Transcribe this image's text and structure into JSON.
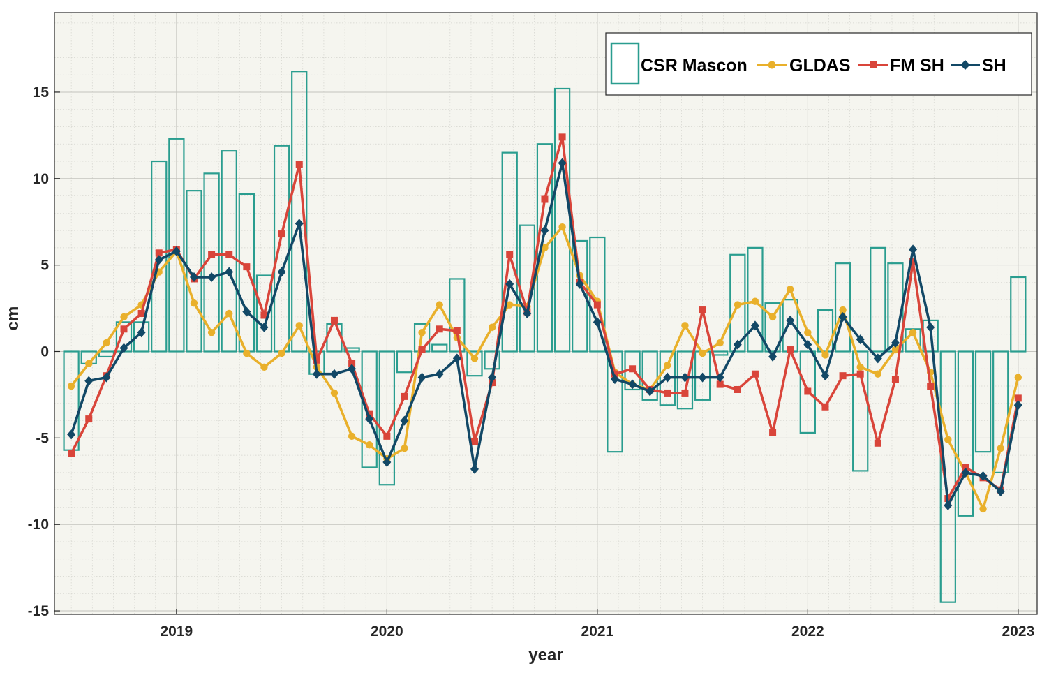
{
  "chart_data": {
    "type": "bar+line",
    "title": "",
    "xlabel": "year",
    "ylabel": "cm",
    "xlim": [
      2018.42,
      2023.09
    ],
    "ylim": [
      -15.2,
      19.6
    ],
    "x_ticks": [
      2019,
      2020,
      2021,
      2022,
      2023
    ],
    "x_tick_labels": [
      "2019",
      "2020",
      "2021",
      "2022",
      "2023"
    ],
    "y_ticks": [
      -15,
      -10,
      -5,
      0,
      5,
      10,
      15
    ],
    "y_tick_labels": [
      "-15",
      "-10",
      "-5",
      "0",
      "5",
      "10",
      "15"
    ],
    "grid": "on (major and minor)",
    "legend_position": "top-right",
    "x_start": 2018.5,
    "x_step": 0.08333,
    "colors": {
      "mascon": "#2a9d8f",
      "gldas": "#e9b02b",
      "fmsh": "#d9453a",
      "sh": "#124866",
      "plot_bg": "#f5f5ef",
      "grid": "#d3d3cd"
    },
    "series": [
      {
        "name": "CSR Mascon",
        "style": "bar",
        "values": [
          -5.7,
          -0.7,
          -0.3,
          1.7,
          1.7,
          11.0,
          12.3,
          9.3,
          10.3,
          11.6,
          9.1,
          4.4,
          11.9,
          16.2,
          -1.3,
          1.6,
          0.2,
          -6.7,
          -7.7,
          -1.2,
          1.6,
          0.4,
          4.2,
          -1.4,
          -1.0,
          11.5,
          7.3,
          12.0,
          15.2,
          6.4,
          6.6,
          -5.8,
          -2.2,
          -2.8,
          -3.1,
          -3.3,
          -2.8,
          -0.2,
          5.6,
          6.0,
          2.8,
          3.0,
          -4.7,
          2.4,
          5.1,
          -6.9,
          6.0,
          5.1,
          1.3,
          1.8,
          -14.5,
          -9.5,
          -5.8,
          -7.0,
          4.3
        ]
      },
      {
        "name": "GLDAS",
        "style": "line-circle",
        "values": [
          -2.0,
          -0.7,
          0.5,
          2.0,
          2.7,
          4.6,
          5.8,
          2.8,
          1.1,
          2.2,
          -0.1,
          -0.9,
          -0.1,
          1.5,
          -0.9,
          -2.4,
          -4.9,
          -5.4,
          -6.2,
          -5.6,
          1.1,
          2.7,
          0.8,
          -0.4,
          1.4,
          2.7,
          2.6,
          6.0,
          7.2,
          4.4,
          2.9,
          -1.2,
          -1.9,
          -2.2,
          -0.8,
          1.5,
          -0.1,
          0.5,
          2.7,
          2.9,
          2.0,
          3.6,
          1.1,
          -0.2,
          2.4,
          -0.9,
          -1.3,
          0.1,
          1.1,
          -1.2,
          -5.1,
          -7.0,
          -9.1,
          -5.6,
          -1.5
        ]
      },
      {
        "name": "FM SH",
        "style": "line-square",
        "values": [
          -5.9,
          -3.9,
          -1.4,
          1.3,
          2.2,
          5.7,
          5.9,
          4.2,
          5.6,
          5.6,
          4.9,
          2.1,
          6.8,
          10.8,
          -0.5,
          1.8,
          -0.7,
          -3.6,
          -4.9,
          -2.6,
          0.1,
          1.3,
          1.2,
          -5.2,
          -1.8,
          5.6,
          2.3,
          8.8,
          12.4,
          4.0,
          2.7,
          -1.3,
          -1.0,
          -2.2,
          -2.4,
          -2.4,
          2.4,
          -1.9,
          -2.2,
          -1.3,
          -4.7,
          0.1,
          -2.3,
          -3.2,
          -1.4,
          -1.3,
          -5.3,
          -1.6,
          5.2,
          -2.0,
          -8.5,
          -6.7,
          -7.3,
          -8.0,
          -2.7
        ]
      },
      {
        "name": "SH",
        "style": "line-diamond",
        "values": [
          -4.8,
          -1.7,
          -1.5,
          0.2,
          1.1,
          5.3,
          5.8,
          4.3,
          4.3,
          4.6,
          2.3,
          1.4,
          4.6,
          7.4,
          -1.3,
          -1.3,
          -1.0,
          -3.9,
          -6.4,
          -4.0,
          -1.5,
          -1.3,
          -0.4,
          -6.8,
          -1.5,
          3.9,
          2.2,
          7.0,
          10.9,
          3.9,
          1.7,
          -1.6,
          -1.9,
          -2.3,
          -1.5,
          -1.5,
          -1.5,
          -1.5,
          0.4,
          1.5,
          -0.3,
          1.8,
          0.4,
          -1.4,
          2.0,
          0.7,
          -0.4,
          0.5,
          5.9,
          1.4,
          -8.9,
          -7.0,
          -7.2,
          -8.1,
          -3.1
        ]
      }
    ]
  }
}
